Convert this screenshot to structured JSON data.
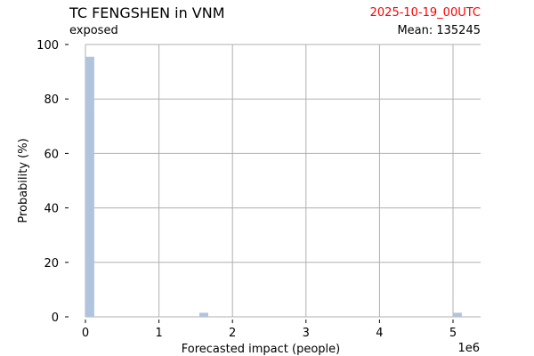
{
  "header": {
    "title": "TC FENGSHEN in VNM",
    "subtitle": "exposed",
    "date": "2025-10-19_00UTC",
    "mean": "Mean: 135245"
  },
  "chart_data": {
    "type": "bar",
    "xlabel": "Forecasted impact (people)",
    "ylabel": "Probability (%)",
    "x_offset_label": "1e6",
    "xlim": [
      -0.1,
      5.3
    ],
    "ylim": [
      0,
      100
    ],
    "x_ticks": [
      "0",
      "1",
      "2",
      "3",
      "4",
      "5"
    ],
    "y_ticks": [
      "0",
      "20",
      "40",
      "60",
      "80",
      "100"
    ],
    "bars": [
      {
        "x0": 0.0,
        "x1": 0.12,
        "value": 95.5
      },
      {
        "x0": 1.55,
        "x1": 1.67,
        "value": 1.5
      },
      {
        "x0": 5.0,
        "x1": 5.12,
        "value": 1.5
      }
    ],
    "bar_color": "#b0c4de",
    "grid": true
  }
}
